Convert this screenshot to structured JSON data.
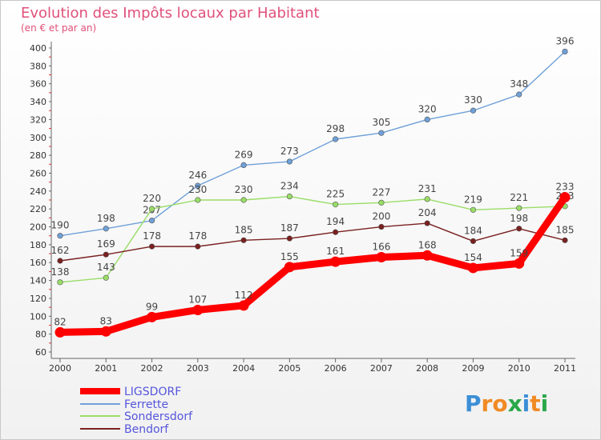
{
  "title": "Evolution des Impôts locaux par Habitant",
  "subtitle": "(en € et par an)",
  "brand": {
    "letters": [
      "P",
      "r",
      "o",
      "x",
      "i",
      "t",
      "i"
    ],
    "colors": [
      "#3c8fd6",
      "#f08a24",
      "#f08a24",
      "#2aa84a",
      "#3c8fd6",
      "#f08a24",
      "#2aa84a"
    ]
  },
  "chart_data": {
    "type": "line",
    "categories": [
      "2000",
      "2001",
      "2002",
      "2003",
      "2004",
      "2005",
      "2006",
      "2007",
      "2008",
      "2009",
      "2010",
      "2011"
    ],
    "ylim": [
      60,
      400
    ],
    "yticks": [
      60,
      80,
      100,
      120,
      140,
      160,
      180,
      200,
      220,
      240,
      260,
      280,
      300,
      320,
      340,
      360,
      380,
      400
    ],
    "grid": false,
    "legend_position": "bottom-left",
    "series": [
      {
        "name": "LIGSDORF",
        "color": "#ff0000",
        "values": [
          82,
          83,
          99,
          107,
          112,
          155,
          161,
          166,
          168,
          154,
          159,
          233
        ]
      },
      {
        "name": "Ferrette",
        "color": "#6fa0d8",
        "values": [
          190,
          198,
          207,
          246,
          269,
          273,
          298,
          305,
          320,
          330,
          348,
          396
        ]
      },
      {
        "name": "Sondersdorf",
        "color": "#99dd66",
        "values": [
          138,
          143,
          220,
          230,
          230,
          234,
          225,
          227,
          231,
          219,
          221,
          223
        ]
      },
      {
        "name": "Bendorf",
        "color": "#7a2020",
        "values": [
          162,
          169,
          178,
          178,
          185,
          187,
          194,
          200,
          204,
          184,
          198,
          185
        ]
      }
    ]
  }
}
